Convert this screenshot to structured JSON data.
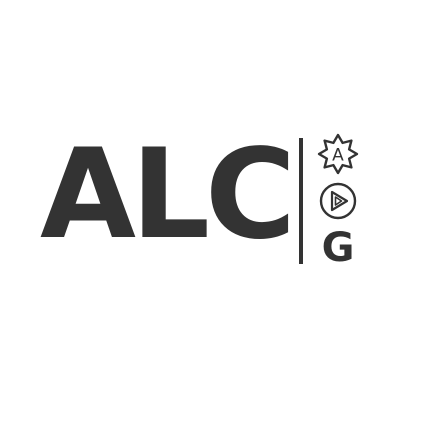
{
  "logo": {
    "wordmark": "ALC",
    "badge_a_letter": "A",
    "badge_g_letter": "G",
    "badges": [
      "badge-icon",
      "play-icon",
      "g-letter-icon"
    ],
    "color": "#333333",
    "background": "#ffffff"
  }
}
